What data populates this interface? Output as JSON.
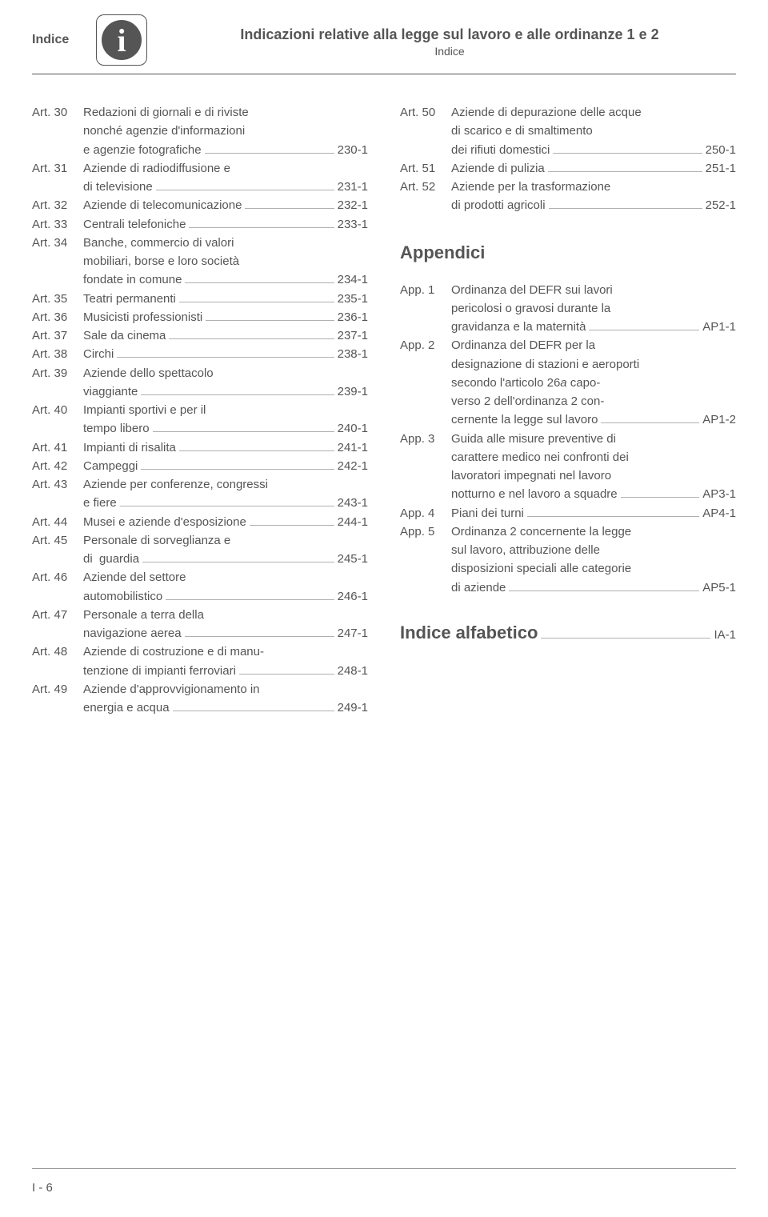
{
  "header": {
    "indice": "Indice",
    "title": "Indicazioni relative alla legge sul lavoro e alle ordinanze 1 e 2",
    "sub": "Indice"
  },
  "left": [
    {
      "l": "Art. 30",
      "lines": [
        "Redazioni di giornali e di riviste",
        "nonché agenzie d'informazioni"
      ],
      "last": "e agenzie fotografiche",
      "p": "230-1"
    },
    {
      "l": "Art. 31",
      "lines": [
        "Aziende di radiodiffusione e"
      ],
      "last": "di televisione",
      "p": "231-1"
    },
    {
      "l": "Art. 32",
      "lines": [],
      "last": "Aziende di telecomunicazione",
      "p": "232-1"
    },
    {
      "l": "Art. 33",
      "lines": [],
      "last": "Centrali telefoniche",
      "p": "233-1"
    },
    {
      "l": "Art. 34",
      "lines": [
        "Banche, commercio di valori",
        "mobiliari, borse e loro società"
      ],
      "last": "fondate in comune",
      "p": "234-1"
    },
    {
      "l": "Art. 35",
      "lines": [],
      "last": "Teatri permanenti",
      "p": "235-1"
    },
    {
      "l": "Art. 36",
      "lines": [],
      "last": "Musicisti professionisti",
      "p": "236-1"
    },
    {
      "l": "Art. 37",
      "lines": [],
      "last": "Sale da cinema",
      "p": "237-1"
    },
    {
      "l": "Art. 38",
      "lines": [],
      "last": "Circhi",
      "p": "238-1"
    },
    {
      "l": "Art. 39",
      "lines": [
        "Aziende dello spettacolo"
      ],
      "last": "viaggiante",
      "p": "239-1"
    },
    {
      "l": "Art. 40",
      "lines": [
        "Impianti sportivi e per il"
      ],
      "last": "tempo libero",
      "p": "240-1"
    },
    {
      "l": "Art. 41",
      "lines": [],
      "last": "Impianti di risalita",
      "p": "241-1"
    },
    {
      "l": "Art. 42",
      "lines": [],
      "last": "Campeggi",
      "p": "242-1"
    },
    {
      "l": "Art. 43",
      "lines": [
        "Aziende per conferenze, congressi"
      ],
      "last": "e fiere",
      "p": "243-1"
    },
    {
      "l": "Art. 44",
      "lines": [],
      "last": "Musei e aziende d'esposizione",
      "p": "244-1"
    },
    {
      "l": "Art. 45",
      "lines": [
        "Personale di sorveglianza e"
      ],
      "last": "di  guardia",
      "p": "245-1"
    },
    {
      "l": "Art. 46",
      "lines": [
        "Aziende del settore"
      ],
      "last": "automobilistico",
      "p": "246-1"
    },
    {
      "l": "Art. 47",
      "lines": [
        "Personale a terra della"
      ],
      "last": "navigazione aerea",
      "p": "247-1"
    },
    {
      "l": "Art. 48",
      "lines": [
        "Aziende di costruzione e di manu-"
      ],
      "last": "tenzione di impianti ferroviari",
      "p": "248-1"
    },
    {
      "l": "Art. 49",
      "lines": [
        "Aziende d'approvvigionamento in"
      ],
      "last": "energia e acqua",
      "p": "249-1"
    }
  ],
  "right_top": [
    {
      "l": "Art. 50",
      "lines": [
        "Aziende di depurazione delle acque",
        "di scarico e di smaltimento"
      ],
      "last": "dei rifiuti domestici",
      "p": "250-1"
    },
    {
      "l": "Art. 51",
      "lines": [],
      "last": "Aziende di pulizia",
      "p": "251-1"
    },
    {
      "l": "Art. 52",
      "lines": [
        "Aziende per la trasformazione"
      ],
      "last": "di prodotti agricoli",
      "p": "252-1"
    }
  ],
  "appendici_heading": "Appendici",
  "appendici": [
    {
      "l": "App. 1",
      "lines": [
        "Ordinanza del DEFR sui lavori",
        "pericolosi o gravosi durante la"
      ],
      "last": "gravidanza e la maternità",
      "p": "AP1-1"
    },
    {
      "l": "App. 2",
      "lines": [
        "Ordinanza del DEFR per la",
        "designazione di stazioni e aeroporti",
        "secondo l'articolo 26a capo-",
        "verso 2 dell'ordinanza 2 con-"
      ],
      "last": "cernente la legge sul lavoro",
      "p": "AP1-2",
      "italic_idx": 2
    },
    {
      "l": "App. 3",
      "lines": [
        "Guida alle misure preventive di",
        "carattere medico nei confronti dei",
        "lavoratori impegnati nel lavoro"
      ],
      "last": "notturno e nel lavoro a squadre",
      "p": "AP3-1"
    },
    {
      "l": "App. 4",
      "lines": [],
      "last": "Piani dei turni",
      "p": "AP4-1"
    },
    {
      "l": "App. 5",
      "lines": [
        "Ordinanza 2 concernente la legge",
        "sul lavoro, attribuzione delle",
        "disposizioni speciali alle categorie"
      ],
      "last": "di aziende",
      "p": "AP5-1"
    }
  ],
  "indice_alfabetico": {
    "label": "Indice alfabetico",
    "p": "IA-1"
  },
  "footer": "I - 6"
}
